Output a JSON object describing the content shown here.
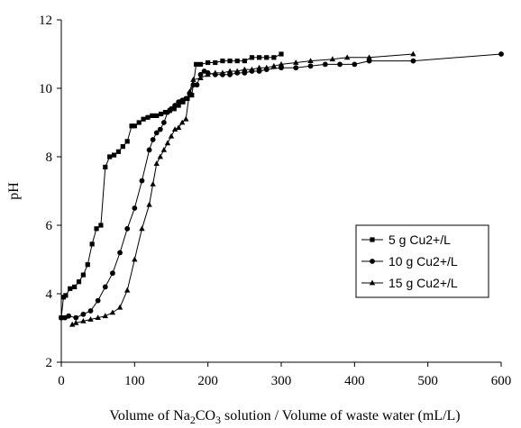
{
  "chart_data": {
    "type": "line",
    "title": "",
    "ylabel": "pH",
    "xlabel_parts": {
      "pre": "Volume of Na",
      "sub1": "2",
      "mid": "CO",
      "sub2": "3",
      "post": " solution / Volume of waste water (mL/L)"
    },
    "xlim": [
      0,
      600
    ],
    "ylim": [
      2,
      12
    ],
    "xticks": [
      0,
      100,
      200,
      300,
      400,
      500,
      600
    ],
    "yticks": [
      2,
      4,
      6,
      8,
      10,
      12
    ],
    "grid": false,
    "legend_position": "right-middle",
    "series": [
      {
        "name": "5 g Cu2+/L",
        "marker": "square",
        "x": [
          0,
          3,
          6,
          12,
          18,
          24,
          30,
          36,
          42,
          48,
          54,
          60,
          66,
          72,
          78,
          84,
          90,
          96,
          100,
          106,
          112,
          118,
          124,
          130,
          136,
          142,
          148,
          154,
          160,
          166,
          172,
          178,
          184,
          190,
          200,
          210,
          220,
          230,
          240,
          250,
          260,
          270,
          280,
          290,
          300
        ],
        "y": [
          3.3,
          3.9,
          3.95,
          4.15,
          4.2,
          4.35,
          4.55,
          4.85,
          5.45,
          5.9,
          6.0,
          7.7,
          8.0,
          8.05,
          8.15,
          8.3,
          8.45,
          8.9,
          8.9,
          9.0,
          9.1,
          9.15,
          9.2,
          9.2,
          9.25,
          9.3,
          9.35,
          9.4,
          9.5,
          9.6,
          9.7,
          9.8,
          10.7,
          10.7,
          10.75,
          10.75,
          10.8,
          10.8,
          10.8,
          10.8,
          10.9,
          10.9,
          10.9,
          10.9,
          11.0
        ]
      },
      {
        "name": "10 g Cu2+/L",
        "marker": "circle",
        "x": [
          0,
          5,
          10,
          20,
          30,
          40,
          50,
          60,
          70,
          80,
          90,
          100,
          110,
          120,
          125,
          130,
          135,
          140,
          145,
          150,
          155,
          160,
          165,
          170,
          175,
          180,
          185,
          190,
          195,
          200,
          210,
          220,
          230,
          240,
          250,
          260,
          270,
          280,
          300,
          320,
          340,
          360,
          380,
          400,
          420,
          480,
          600
        ],
        "y": [
          3.3,
          3.3,
          3.35,
          3.3,
          3.4,
          3.5,
          3.8,
          4.2,
          4.6,
          5.2,
          5.9,
          6.5,
          7.3,
          8.2,
          8.5,
          8.7,
          8.8,
          9.0,
          9.3,
          9.4,
          9.5,
          9.6,
          9.65,
          9.7,
          9.85,
          10.1,
          10.1,
          10.4,
          10.5,
          10.45,
          10.4,
          10.4,
          10.4,
          10.45,
          10.45,
          10.5,
          10.5,
          10.55,
          10.6,
          10.6,
          10.65,
          10.7,
          10.7,
          10.7,
          10.8,
          10.8,
          11.0
        ]
      },
      {
        "name": "15 g Cu2+/L",
        "marker": "triangle",
        "x": [
          15,
          20,
          30,
          40,
          50,
          60,
          70,
          80,
          90,
          100,
          110,
          120,
          125,
          130,
          135,
          140,
          145,
          150,
          155,
          160,
          165,
          170,
          175,
          180,
          190,
          200,
          210,
          220,
          230,
          240,
          250,
          260,
          270,
          280,
          290,
          300,
          320,
          340,
          370,
          390,
          420,
          480
        ],
        "y": [
          3.1,
          3.15,
          3.2,
          3.25,
          3.3,
          3.35,
          3.45,
          3.6,
          4.1,
          5.0,
          5.9,
          6.6,
          7.2,
          7.8,
          8.0,
          8.2,
          8.4,
          8.6,
          8.8,
          8.85,
          9.0,
          9.1,
          9.9,
          10.25,
          10.3,
          10.4,
          10.45,
          10.45,
          10.5,
          10.5,
          10.55,
          10.55,
          10.6,
          10.6,
          10.65,
          10.7,
          10.75,
          10.8,
          10.85,
          10.9,
          10.9,
          11.0
        ]
      }
    ]
  }
}
